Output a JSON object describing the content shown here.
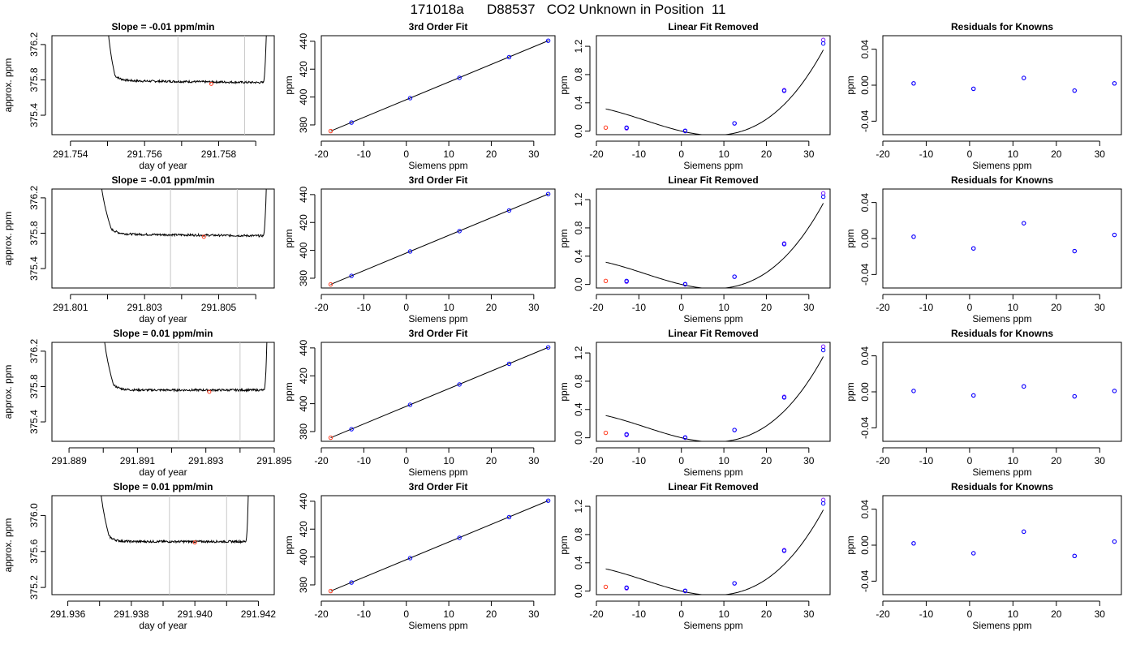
{
  "page_title": "171018a      D88537   CO2 Unknown in Position  11",
  "colors": {
    "axis": "#000000",
    "vline": "#c8c8c8",
    "trace": "#000000",
    "known": "#0000ff",
    "pred": "#ff3b1f",
    "resid": "#7a1cff"
  },
  "chart_data": [
    {
      "type": "line",
      "title": "Slope =  -0.01  ppm/min",
      "xlabel": "day of year",
      "ylabel": "approx. ppm",
      "xlim": [
        291.7535,
        291.7595
      ],
      "ylim": [
        375.18,
        376.3
      ],
      "xticks": [
        291.754,
        291.755,
        291.756,
        291.757,
        291.758,
        291.759
      ],
      "xtick_labels": [
        "291.754",
        "",
        "291.756",
        "",
        "291.758",
        ""
      ],
      "yticks": [
        375.4,
        375.8,
        376.2
      ],
      "ytick_labels": [
        "375.4",
        "375.8",
        "376.2"
      ],
      "vlines": [
        291.7569,
        291.7587
      ],
      "trace": {
        "x0": 291.755,
        "drop": 291.7552,
        "plateau_end": 291.7592,
        "rise_end": 291.7593,
        "level": 375.79,
        "tilt": -0.02,
        "noise": 0.012,
        "top": 376.55
      },
      "marker": {
        "x": 291.7578,
        "y": 375.755
      }
    },
    {
      "type": "scatter",
      "title": "3rd Order Fit",
      "xlabel": "Siemens ppm",
      "ylabel": "ppm",
      "xlim": [
        -20,
        35
      ],
      "ylim": [
        373,
        444
      ],
      "xticks": [
        -20,
        -10,
        0,
        10,
        20,
        30
      ],
      "xtick_labels": [
        "-20",
        "-10",
        "0",
        "10",
        "20",
        "30"
      ],
      "yticks": [
        380,
        400,
        420,
        440
      ],
      "ytick_labels": [
        "380",
        "400",
        "420",
        "440"
      ],
      "curve": {
        "x": [
          -17.8,
          33.5
        ],
        "y": [
          375.6,
          440.5
        ]
      },
      "known_points": {
        "x": [
          -12.9,
          0.9,
          12.5,
          24.2,
          33.4
        ],
        "y": [
          381.7,
          399.2,
          413.8,
          428.6,
          440.4
        ]
      },
      "pred_points": {
        "x": [
          -17.8
        ],
        "y": [
          375.6
        ]
      }
    },
    {
      "type": "scatter",
      "title": "Linear Fit Removed",
      "xlabel": "Siemens ppm",
      "ylabel": "ppm",
      "xlim": [
        -20,
        35
      ],
      "ylim": [
        -0.05,
        1.35
      ],
      "xticks": [
        -20,
        -10,
        0,
        10,
        20,
        30
      ],
      "xtick_labels": [
        "-20",
        "-10",
        "0",
        "10",
        "20",
        "30"
      ],
      "yticks": [
        0,
        0.4,
        0.8,
        1.2
      ],
      "ytick_labels": [
        "0.0",
        "0.4",
        "0.8",
        "1.2"
      ],
      "curve": {
        "poly": [
          0.0,
          -0.0141,
          0.000633,
          2.45e-05
        ],
        "xrange": [
          -17.8,
          33.4
        ]
      },
      "known_points": {
        "x": [
          -12.9,
          0.9,
          12.5,
          24.2,
          33.4
        ],
        "y": [
          0.05,
          0.005,
          0.11,
          0.57,
          1.24
        ]
      },
      "resid_points": {
        "x": [
          -12.9,
          0.9,
          12.5,
          24.2,
          33.4
        ],
        "y": [
          0.04,
          0.0,
          0.11,
          0.58,
          1.29
        ]
      },
      "pred_points": {
        "x": [
          -17.8
        ],
        "y": [
          0.05
        ]
      }
    },
    {
      "type": "scatter",
      "title": "Residuals for Knowns",
      "xlabel": "Siemens ppm",
      "ylabel": "ppm",
      "xlim": [
        -20,
        35
      ],
      "ylim": [
        -0.055,
        0.055
      ],
      "xticks": [
        -20,
        -10,
        0,
        10,
        20,
        30
      ],
      "xtick_labels": [
        "-20",
        "-10",
        "0",
        "10",
        "20",
        "30"
      ],
      "yticks": [
        -0.04,
        0,
        0.04
      ],
      "ytick_labels": [
        "-0.04",
        "0.00",
        "0.04"
      ],
      "points": {
        "x": [
          -12.9,
          0.9,
          12.5,
          24.2,
          33.4
        ],
        "y": [
          0.002,
          -0.004,
          0.008,
          -0.006,
          0.002
        ]
      }
    },
    {
      "type": "line",
      "title": "Slope =  -0.01  ppm/min",
      "xlabel": "day of year",
      "ylabel": "approx. ppm",
      "xlim": [
        291.8005,
        291.8065
      ],
      "ylim": [
        375.18,
        376.3
      ],
      "xticks": [
        291.801,
        291.802,
        291.803,
        291.804,
        291.805,
        291.806
      ],
      "xtick_labels": [
        "291.801",
        "",
        "291.803",
        "",
        "291.805",
        ""
      ],
      "yticks": [
        375.4,
        375.8,
        376.2
      ],
      "ytick_labels": [
        "375.4",
        "375.8",
        "376.2"
      ],
      "vlines": [
        291.8037,
        291.8055
      ],
      "trace": {
        "x0": 291.8018,
        "drop": 291.8021,
        "plateau_end": 291.8062,
        "rise_end": 291.8063,
        "level": 375.79,
        "tilt": -0.02,
        "noise": 0.012,
        "top": 376.55
      },
      "marker": {
        "x": 291.8046,
        "y": 375.76
      }
    },
    {
      "type": "scatter",
      "title": "3rd Order Fit",
      "xlabel": "Siemens ppm",
      "ylabel": "ppm",
      "xlim": [
        -20,
        35
      ],
      "ylim": [
        373,
        444
      ],
      "xticks": [
        -20,
        -10,
        0,
        10,
        20,
        30
      ],
      "xtick_labels": [
        "-20",
        "-10",
        "0",
        "10",
        "20",
        "30"
      ],
      "yticks": [
        380,
        400,
        420,
        440
      ],
      "ytick_labels": [
        "380",
        "400",
        "420",
        "440"
      ],
      "curve": {
        "x": [
          -17.8,
          33.5
        ],
        "y": [
          375.6,
          440.5
        ]
      },
      "known_points": {
        "x": [
          -12.9,
          0.9,
          12.5,
          24.2,
          33.4
        ],
        "y": [
          381.7,
          399.2,
          413.8,
          428.6,
          440.4
        ]
      },
      "pred_points": {
        "x": [
          -17.8
        ],
        "y": [
          375.6
        ]
      }
    },
    {
      "type": "scatter",
      "title": "Linear Fit Removed",
      "xlabel": "Siemens ppm",
      "ylabel": "ppm",
      "xlim": [
        -20,
        35
      ],
      "ylim": [
        -0.05,
        1.35
      ],
      "xticks": [
        -20,
        -10,
        0,
        10,
        20,
        30
      ],
      "xtick_labels": [
        "-20",
        "-10",
        "0",
        "10",
        "20",
        "30"
      ],
      "yticks": [
        0,
        0.4,
        0.8,
        1.2
      ],
      "ytick_labels": [
        "0.0",
        "0.4",
        "0.8",
        "1.2"
      ],
      "curve": {
        "poly": [
          0.0,
          -0.0141,
          0.000633,
          2.45e-05
        ],
        "xrange": [
          -17.8,
          33.4
        ]
      },
      "known_points": {
        "x": [
          -12.9,
          0.9,
          12.5,
          24.2,
          33.4
        ],
        "y": [
          0.05,
          0.005,
          0.11,
          0.57,
          1.24
        ]
      },
      "resid_points": {
        "x": [
          -12.9,
          0.9,
          12.5,
          24.2,
          33.4
        ],
        "y": [
          0.04,
          0.0,
          0.11,
          0.58,
          1.29
        ]
      },
      "pred_points": {
        "x": [
          -17.8
        ],
        "y": [
          0.05
        ]
      }
    },
    {
      "type": "scatter",
      "title": "Residuals for Knowns",
      "xlabel": "Siemens ppm",
      "ylabel": "ppm",
      "xlim": [
        -20,
        35
      ],
      "ylim": [
        -0.055,
        0.055
      ],
      "xticks": [
        -20,
        -10,
        0,
        10,
        20,
        30
      ],
      "xtick_labels": [
        "-20",
        "-10",
        "0",
        "10",
        "20",
        "30"
      ],
      "yticks": [
        -0.04,
        0,
        0.04
      ],
      "ytick_labels": [
        "-0.04",
        "0.00",
        "0.04"
      ],
      "points": {
        "x": [
          -12.9,
          0.9,
          12.5,
          24.2,
          33.4
        ],
        "y": [
          0.002,
          -0.011,
          0.017,
          -0.014,
          0.004
        ]
      }
    },
    {
      "type": "line",
      "title": "Slope =  0.01  ppm/min",
      "xlabel": "day of year",
      "ylabel": "approx. ppm",
      "xlim": [
        291.8885,
        291.895
      ],
      "ylim": [
        375.18,
        376.3
      ],
      "xticks": [
        291.889,
        291.89,
        291.891,
        291.892,
        291.893,
        291.894,
        291.895
      ],
      "xtick_labels": [
        "291.889",
        "",
        "291.891",
        "",
        "291.893",
        "",
        "291.895"
      ],
      "yticks": [
        375.4,
        375.8,
        376.2
      ],
      "ytick_labels": [
        "375.4",
        "375.8",
        "376.2"
      ],
      "vlines": [
        291.8922,
        291.894
      ],
      "trace": {
        "x0": 291.89,
        "drop": 291.8903,
        "plateau_end": 291.8947,
        "rise_end": 291.8948,
        "level": 375.76,
        "tilt": 0.0,
        "noise": 0.012,
        "top": 376.55
      },
      "marker": {
        "x": 291.8931,
        "y": 375.74
      }
    },
    {
      "type": "scatter",
      "title": "3rd Order Fit",
      "xlabel": "Siemens ppm",
      "ylabel": "ppm",
      "xlim": [
        -20,
        35
      ],
      "ylim": [
        373,
        444
      ],
      "xticks": [
        -20,
        -10,
        0,
        10,
        20,
        30
      ],
      "xtick_labels": [
        "-20",
        "-10",
        "0",
        "10",
        "20",
        "30"
      ],
      "yticks": [
        380,
        400,
        420,
        440
      ],
      "ytick_labels": [
        "380",
        "400",
        "420",
        "440"
      ],
      "curve": {
        "x": [
          -17.8,
          33.5
        ],
        "y": [
          375.6,
          440.5
        ]
      },
      "known_points": {
        "x": [
          -12.9,
          0.9,
          12.5,
          24.2,
          33.4
        ],
        "y": [
          381.7,
          399.2,
          413.8,
          428.6,
          440.4
        ]
      },
      "pred_points": {
        "x": [
          -17.8
        ],
        "y": [
          375.6
        ]
      }
    },
    {
      "type": "scatter",
      "title": "Linear Fit Removed",
      "xlabel": "Siemens ppm",
      "ylabel": "ppm",
      "xlim": [
        -20,
        35
      ],
      "ylim": [
        -0.05,
        1.35
      ],
      "xticks": [
        -20,
        -10,
        0,
        10,
        20,
        30
      ],
      "xtick_labels": [
        "-20",
        "-10",
        "0",
        "10",
        "20",
        "30"
      ],
      "yticks": [
        0,
        0.4,
        0.8,
        1.2
      ],
      "ytick_labels": [
        "0.0",
        "0.4",
        "0.8",
        "1.2"
      ],
      "curve": {
        "poly": [
          0.0,
          -0.0141,
          0.000633,
          2.45e-05
        ],
        "xrange": [
          -17.8,
          33.4
        ]
      },
      "known_points": {
        "x": [
          -12.9,
          0.9,
          12.5,
          24.2,
          33.4
        ],
        "y": [
          0.05,
          0.005,
          0.11,
          0.57,
          1.24
        ]
      },
      "resid_points": {
        "x": [
          -12.9,
          0.9,
          12.5,
          24.2,
          33.4
        ],
        "y": [
          0.04,
          0.0,
          0.11,
          0.58,
          1.29
        ]
      },
      "pred_points": {
        "x": [
          -17.8
        ],
        "y": [
          0.07
        ]
      }
    },
    {
      "type": "scatter",
      "title": "Residuals for Knowns",
      "xlabel": "Siemens ppm",
      "ylabel": "ppm",
      "xlim": [
        -20,
        35
      ],
      "ylim": [
        -0.055,
        0.055
      ],
      "xticks": [
        -20,
        -10,
        0,
        10,
        20,
        30
      ],
      "xtick_labels": [
        "-20",
        "-10",
        "0",
        "10",
        "20",
        "30"
      ],
      "yticks": [
        -0.04,
        0,
        0.04
      ],
      "ytick_labels": [
        "-0.04",
        "0.00",
        "0.04"
      ],
      "points": {
        "x": [
          -12.9,
          0.9,
          12.5,
          24.2,
          33.4
        ],
        "y": [
          0.001,
          -0.004,
          0.006,
          -0.005,
          0.001
        ]
      }
    },
    {
      "type": "line",
      "title": "Slope =  0.01  ppm/min",
      "xlabel": "day of year",
      "ylabel": "approx. ppm",
      "xlim": [
        291.9355,
        291.9425
      ],
      "ylim": [
        375.12,
        376.22
      ],
      "xticks": [
        291.936,
        291.937,
        291.938,
        291.939,
        291.94,
        291.941,
        291.942
      ],
      "xtick_labels": [
        "291.936",
        "",
        "291.938",
        "",
        "291.940",
        "",
        "291.942"
      ],
      "yticks": [
        375.2,
        375.6,
        376.0
      ],
      "ytick_labels": [
        "375.2",
        "375.6",
        "376.0"
      ],
      "vlines": [
        291.9392,
        291.941
      ],
      "trace": {
        "x0": 291.937,
        "drop": 291.9373,
        "plateau_end": 291.9416,
        "rise_end": 291.9417,
        "level": 375.71,
        "tilt": 0.0,
        "noise": 0.012,
        "top": 376.5
      },
      "marker": {
        "x": 291.94,
        "y": 375.7
      }
    },
    {
      "type": "scatter",
      "title": "3rd Order Fit",
      "xlabel": "Siemens ppm",
      "ylabel": "ppm",
      "xlim": [
        -20,
        35
      ],
      "ylim": [
        373,
        444
      ],
      "xticks": [
        -20,
        -10,
        0,
        10,
        20,
        30
      ],
      "xtick_labels": [
        "-20",
        "-10",
        "0",
        "10",
        "20",
        "30"
      ],
      "yticks": [
        380,
        400,
        420,
        440
      ],
      "ytick_labels": [
        "380",
        "400",
        "420",
        "440"
      ],
      "curve": {
        "x": [
          -17.8,
          33.5
        ],
        "y": [
          375.6,
          440.5
        ]
      },
      "known_points": {
        "x": [
          -12.9,
          0.9,
          12.5,
          24.2,
          33.4
        ],
        "y": [
          381.7,
          399.2,
          413.8,
          428.6,
          440.4
        ]
      },
      "pred_points": {
        "x": [
          -17.8
        ],
        "y": [
          375.6
        ]
      }
    },
    {
      "type": "scatter",
      "title": "Linear Fit Removed",
      "xlabel": "Siemens ppm",
      "ylabel": "ppm",
      "xlim": [
        -20,
        35
      ],
      "ylim": [
        -0.05,
        1.35
      ],
      "xticks": [
        -20,
        -10,
        0,
        10,
        20,
        30
      ],
      "xtick_labels": [
        "-20",
        "-10",
        "0",
        "10",
        "20",
        "30"
      ],
      "yticks": [
        0,
        0.4,
        0.8,
        1.2
      ],
      "ytick_labels": [
        "0.0",
        "0.4",
        "0.8",
        "1.2"
      ],
      "curve": {
        "poly": [
          0.0,
          -0.0141,
          0.000633,
          2.45e-05
        ],
        "xrange": [
          -17.8,
          33.4
        ]
      },
      "known_points": {
        "x": [
          -12.9,
          0.9,
          12.5,
          24.2,
          33.4
        ],
        "y": [
          0.05,
          0.005,
          0.11,
          0.57,
          1.24
        ]
      },
      "resid_points": {
        "x": [
          -12.9,
          0.9,
          12.5,
          24.2,
          33.4
        ],
        "y": [
          0.04,
          0.0,
          0.11,
          0.58,
          1.29
        ]
      },
      "pred_points": {
        "x": [
          -17.8
        ],
        "y": [
          0.06
        ]
      }
    },
    {
      "type": "scatter",
      "title": "Residuals for Knowns",
      "xlabel": "Siemens ppm",
      "ylabel": "ppm",
      "xlim": [
        -20,
        35
      ],
      "ylim": [
        -0.055,
        0.055
      ],
      "xticks": [
        -20,
        -10,
        0,
        10,
        20,
        30
      ],
      "xtick_labels": [
        "-20",
        "-10",
        "0",
        "10",
        "20",
        "30"
      ],
      "yticks": [
        -0.04,
        0,
        0.04
      ],
      "ytick_labels": [
        "-0.04",
        "0.00",
        "0.04"
      ],
      "points": {
        "x": [
          -12.9,
          0.9,
          12.5,
          24.2,
          33.4
        ],
        "y": [
          0.002,
          -0.009,
          0.015,
          -0.012,
          0.004
        ]
      }
    }
  ]
}
